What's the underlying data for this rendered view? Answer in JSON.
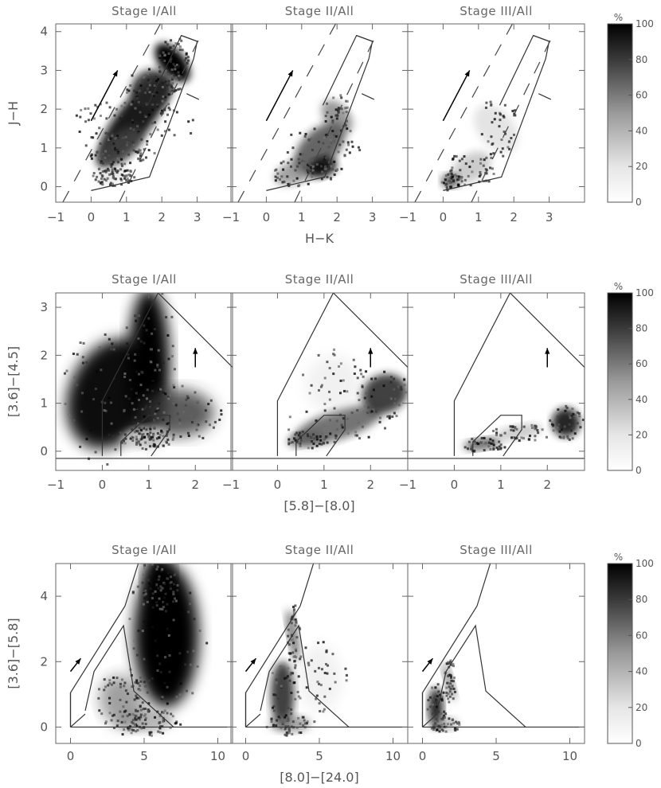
{
  "chart_data": [
    {
      "type": "heatmap",
      "row": "JHK",
      "xlabel": "H−K",
      "ylabel": "J−H",
      "xlim": [
        -1,
        4
      ],
      "ylim": [
        -0.4,
        4.2
      ],
      "xticks": [
        -1,
        0,
        1,
        2,
        3
      ],
      "yticks": [
        0,
        1,
        2,
        3,
        4
      ],
      "panels": [
        {
          "title": "Stage I/All",
          "xtick_labels": [
            "−1",
            "0",
            "1",
            "2",
            "3"
          ]
        },
        {
          "title": "Stage II/All",
          "xtick_labels": [
            "−1",
            "0",
            "1",
            "2",
            "3"
          ]
        },
        {
          "title": "Stage III/All",
          "xtick_labels": [
            "−1",
            "0",
            "1",
            "2",
            "3"
          ]
        }
      ],
      "ytick_labels": [
        "0",
        "1",
        "2",
        "3",
        "4"
      ],
      "reddening_arrow": {
        "x0": 0.0,
        "y0": 1.7,
        "x1": 0.75,
        "y1": 3.0
      },
      "colorbar": {
        "label": "%",
        "ticks": [
          0,
          20,
          40,
          60,
          80,
          100
        ],
        "tick_labels": [
          "0",
          "20",
          "40",
          "60",
          "80",
          "100"
        ]
      }
    },
    {
      "type": "heatmap",
      "row": "IRAC",
      "xlabel": "[5.8]−[8.0]",
      "ylabel": "[3.6]−[4.5]",
      "xlim": [
        -1,
        2.8
      ],
      "ylim": [
        -0.4,
        3.3
      ],
      "xticks": [
        -1,
        0,
        1,
        2
      ],
      "yticks": [
        0,
        1,
        2,
        3
      ],
      "panels": [
        {
          "title": "Stage I/All",
          "xtick_labels": [
            "−1",
            "0",
            "1",
            "2"
          ]
        },
        {
          "title": "Stage II/All",
          "xtick_labels": [
            "−1",
            "0",
            "1",
            "2"
          ]
        },
        {
          "title": "Stage III/All",
          "xtick_labels": [
            "−1",
            "0",
            "1",
            "2"
          ]
        }
      ],
      "ytick_labels": [
        "0",
        "1",
        "2",
        "3"
      ],
      "reddening_arrow": {
        "x0": 2.0,
        "y0": 1.75,
        "x1": 2.0,
        "y1": 2.15
      },
      "colorbar": {
        "label": "%",
        "ticks": [
          0,
          20,
          40,
          60,
          80,
          100
        ],
        "tick_labels": [
          "0",
          "20",
          "40",
          "60",
          "80",
          "100"
        ]
      }
    },
    {
      "type": "heatmap",
      "row": "MIPS",
      "xlabel": "[8.0]−[24.0]",
      "ylabel": "[3.6]−[5.8]",
      "xlim": [
        -1,
        11
      ],
      "ylim": [
        -0.5,
        5
      ],
      "xticks": [
        0,
        5,
        10
      ],
      "yticks": [
        0,
        2,
        4
      ],
      "panels": [
        {
          "title": "Stage I/All",
          "xtick_labels": [
            "0",
            "5",
            "10"
          ]
        },
        {
          "title": "Stage II/All",
          "xtick_labels": [
            "0",
            "5",
            "10"
          ]
        },
        {
          "title": "Stage III/All",
          "xtick_labels": [
            "0",
            "5",
            "10"
          ]
        }
      ],
      "ytick_labels": [
        "0",
        "2",
        "4"
      ],
      "reddening_arrow": {
        "x0": 0.0,
        "y0": 1.7,
        "x1": 0.7,
        "y1": 2.1
      },
      "colorbar": {
        "label": "%",
        "ticks": [
          0,
          20,
          40,
          60,
          80,
          100
        ],
        "tick_labels": [
          "0",
          "20",
          "40",
          "60",
          "80",
          "100"
        ]
      }
    }
  ]
}
